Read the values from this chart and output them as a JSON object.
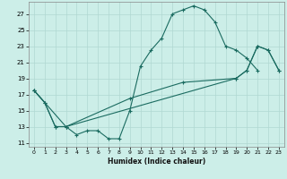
{
  "xlabel": "Humidex (Indice chaleur)",
  "xlim": [
    -0.5,
    23.5
  ],
  "ylim": [
    10.5,
    28.5
  ],
  "yticks": [
    11,
    13,
    15,
    17,
    19,
    21,
    23,
    25,
    27
  ],
  "xticks": [
    0,
    1,
    2,
    3,
    4,
    5,
    6,
    7,
    8,
    9,
    10,
    11,
    12,
    13,
    14,
    15,
    16,
    17,
    18,
    19,
    20,
    21,
    22,
    23
  ],
  "background_color": "#cceee8",
  "grid_color_major": "#b0d8d2",
  "grid_color_minor": "#c4e8e2",
  "line_color": "#1a6b60",
  "curve1_x": [
    0,
    1,
    2,
    3,
    4,
    5,
    6,
    7,
    8,
    9,
    10,
    11,
    12,
    13,
    14,
    15,
    16,
    17,
    18,
    19,
    20,
    21
  ],
  "curve1_y": [
    17.5,
    16.0,
    13.0,
    13.0,
    12.0,
    12.5,
    12.5,
    11.5,
    11.5,
    15.0,
    20.5,
    22.5,
    24.0,
    27.0,
    27.5,
    28.0,
    27.5,
    26.0,
    23.0,
    22.5,
    21.5,
    20.0
  ],
  "curve2_x": [
    0,
    1,
    2,
    3,
    19,
    20,
    21,
    22,
    23
  ],
  "curve2_y": [
    17.5,
    16.0,
    13.0,
    13.0,
    19.0,
    20.0,
    23.0,
    22.5,
    20.0
  ],
  "curve3_x": [
    0,
    3,
    9,
    14,
    19,
    20,
    21,
    22,
    23
  ],
  "curve3_y": [
    17.5,
    13.0,
    16.5,
    18.5,
    19.0,
    20.0,
    23.0,
    22.5,
    20.0
  ]
}
